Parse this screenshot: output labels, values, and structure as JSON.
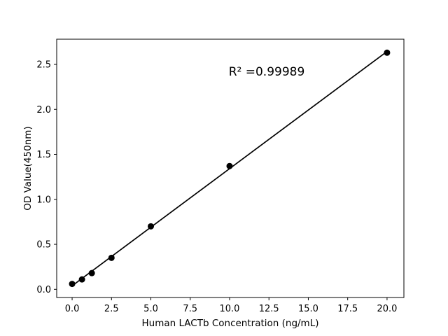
{
  "figure": {
    "background": "#ffffff",
    "foreground": "#000000"
  },
  "chart_data": {
    "type": "scatter",
    "title": "",
    "xlabel": "Human LACTb Concentration (ng/mL)",
    "ylabel": "OD Value(450nm)",
    "x": [
      0,
      0.625,
      1.25,
      2.5,
      5,
      10,
      20
    ],
    "y": [
      0.06,
      0.11,
      0.18,
      0.35,
      0.7,
      1.37,
      2.63
    ],
    "trendline": true,
    "r_squared": "0.99989",
    "annotation": {
      "text": "R² =0.99989"
    },
    "xlim": [
      -0.98,
      21.07
    ],
    "ylim": [
      -0.091,
      2.78
    ],
    "x_ticks": {
      "values": [
        0,
        2.5,
        5,
        7.5,
        10,
        12.5,
        15,
        17.5,
        20
      ],
      "labels": [
        "0.0",
        "2.5",
        "5.0",
        "7.5",
        "10.0",
        "12.5",
        "15.0",
        "17.5",
        "20.0"
      ]
    },
    "y_ticks": {
      "values": [
        0,
        0.5,
        1.0,
        1.5,
        2.0,
        2.5
      ],
      "labels": [
        "0.0",
        "0.5",
        "1.0",
        "1.5",
        "2.0",
        "2.5"
      ]
    },
    "grid": false,
    "legend": null,
    "marker_color": "#000000",
    "line_color": "#000000"
  }
}
